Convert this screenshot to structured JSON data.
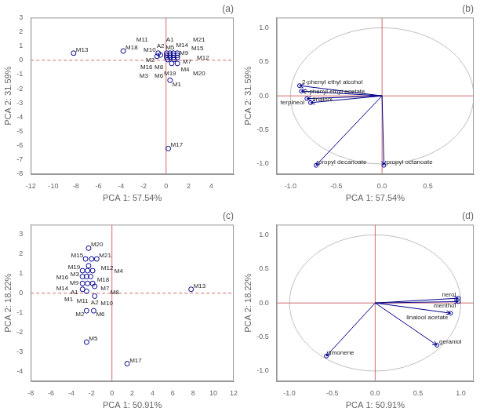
{
  "chart_data": [
    {
      "type": "scatter",
      "title": "(a)",
      "xlabel": "PCA 1: 57.54%",
      "ylabel": "PCA 2: 31.59%",
      "xlim": [
        -12,
        6
      ],
      "ylim": [
        -8,
        3
      ],
      "xticks": [
        -12,
        -10,
        -8,
        -6,
        -4,
        -2,
        0,
        2,
        4
      ],
      "yticks": [
        -8,
        -7,
        -6,
        -5,
        -4,
        -3,
        -2,
        -1,
        0,
        1,
        2,
        3
      ],
      "x": [
        -8.2,
        -3.8,
        -0.7,
        -0.5,
        -0.8,
        0.05,
        0.35,
        0.65,
        1.0,
        0.05,
        0.35,
        0.65,
        1.0,
        0.05,
        0.35,
        0.65,
        1.0,
        0.15,
        0.7,
        0.5,
        1.0,
        0.35,
        0.2
      ],
      "values": [
        0.5,
        0.65,
        0.5,
        0.37,
        0.28,
        0.5,
        0.5,
        0.5,
        0.5,
        0.35,
        0.35,
        0.35,
        0.35,
        0.2,
        0.2,
        0.2,
        0.2,
        0.05,
        0.05,
        -0.22,
        -0.22,
        -1.4,
        -6.2
      ],
      "labels": [
        "M13",
        "M18",
        "M10",
        "A2",
        "M2",
        "M14",
        "M5",
        "M7",
        "M9",
        "M16",
        "M19",
        "M21",
        "M8",
        "M4",
        "A1",
        "M20",
        "M12",
        "M3",
        "M11",
        "M15",
        "M6",
        "M1",
        "M17"
      ],
      "color": "#00008B",
      "marker": "circle",
      "grid": false,
      "reference_lines": [
        {
          "axis": "y",
          "value": 0,
          "color": "#CD5C5C",
          "line_style": "dashed"
        },
        {
          "axis": "x",
          "value": 0,
          "color": "#CD5C5C",
          "line_style": "solid"
        }
      ]
    },
    {
      "type": "biplot",
      "title": "(b)",
      "xlabel": "PCA 1: 57.54%",
      "ylabel": "PCA 2: 31.59%",
      "xlim": [
        -1.15,
        1.0
      ],
      "ylim": [
        -1.15,
        1.15
      ],
      "xticks": [
        {
          "value": -1.0,
          "label": "-1.0"
        },
        -0.5,
        {
          "value": 0.0,
          "label": "0.0"
        },
        0.5
      ],
      "yticks": [
        {
          "value": -1.0,
          "label": "-1.0"
        },
        -0.5,
        {
          "value": 0.0,
          "label": "0.0"
        },
        0.5,
        {
          "value": 1.0,
          "label": "1.0"
        }
      ],
      "x": [
        -0.9,
        -0.88,
        -0.82,
        -0.78,
        -0.72,
        0.02
      ],
      "values": [
        0.15,
        0.07,
        -0.04,
        -0.1,
        -1.02,
        -1.02
      ],
      "labels": [
        "2-phenyl ethyl alcohol",
        "2-phenyl ethyl acetate",
        "terpineol",
        "linalool",
        "propyl decanoate",
        "propyl octanoate"
      ],
      "origin": [
        0,
        0
      ],
      "color": "#00008B",
      "marker": "circle",
      "grid": false,
      "circle": {
        "radius": 1,
        "color": "#BEBEBE"
      },
      "reference_lines": [
        {
          "axis": "y",
          "value": 0,
          "color": "#CD5C5C",
          "line_style": "solid"
        },
        {
          "axis": "x",
          "value": 0,
          "color": "#CD5C5C",
          "line_style": "solid"
        }
      ]
    },
    {
      "type": "scatter",
      "title": "(c)",
      "xlabel": "PCA 1: 50.91%",
      "ylabel": "PCA 2: 18.22%",
      "xlim": [
        -8,
        12
      ],
      "ylim": [
        -4.5,
        3.5
      ],
      "xticks": [
        -8,
        -6,
        -4,
        -2,
        0,
        2,
        4,
        6,
        8,
        10,
        12
      ],
      "yticks": [
        -4,
        -3,
        -2,
        -1,
        0,
        1,
        2,
        3
      ],
      "x": [
        -2.3,
        -2.6,
        -2.0,
        -1.5,
        -2.3,
        -2.9,
        -2.4,
        -1.9,
        -2.9,
        -2.5,
        -2.1,
        -2.9,
        -2.4,
        -1.9,
        -2.9,
        -2.5,
        -1.7,
        -2.5,
        -1.8,
        -2.5,
        1.5,
        7.8,
        -1.7
      ],
      "values": [
        2.3,
        1.75,
        1.75,
        1.75,
        1.4,
        1.15,
        1.15,
        1.15,
        0.85,
        0.85,
        0.85,
        0.5,
        0.5,
        0.5,
        0.2,
        0.1,
        -0.15,
        -0.9,
        -0.9,
        -2.5,
        -3.6,
        0.2,
        0.35
      ],
      "labels": [
        "M20",
        "M15",
        "M12",
        "M21",
        "M3",
        "M19",
        "M18",
        "M9",
        "M14",
        "M7",
        "M8",
        "M11",
        "A1",
        "M1",
        "M16",
        "M10",
        "A2",
        "M2",
        "M6",
        "M5",
        "M17",
        "M13",
        "M4"
      ],
      "color": "#00008B",
      "marker": "circle",
      "grid": false,
      "reference_lines": [
        {
          "axis": "y",
          "value": 0,
          "color": "#CD5C5C",
          "line_style": "dashed"
        },
        {
          "axis": "x",
          "value": 0,
          "color": "#CD5C5C",
          "line_style": "solid"
        }
      ]
    },
    {
      "type": "biplot",
      "title": "(d)",
      "xlabel": "PCA 1: 50.91%",
      "ylabel": "PCA 2: 18.22%",
      "xlim": [
        -1.15,
        1.15
      ],
      "ylim": [
        -1.15,
        1.15
      ],
      "xticks": [
        {
          "value": -1.0,
          "label": "-1.0"
        },
        -0.5,
        {
          "value": 0.0,
          "label": "0.0"
        },
        0.5,
        {
          "value": 1.0,
          "label": "1.0"
        }
      ],
      "yticks": [
        {
          "value": -1.0,
          "label": "-1.0"
        },
        -0.5,
        {
          "value": 0.0,
          "label": "0.0"
        },
        0.5,
        {
          "value": 1.0,
          "label": "1.0"
        }
      ],
      "x": [
        0.97,
        0.97,
        0.88,
        0.72,
        -0.57
      ],
      "values": [
        0.07,
        0.02,
        -0.15,
        -0.62,
        -0.78
      ],
      "labels": [
        "nerol",
        "menthol",
        "linalool acetate",
        "geraniol",
        "limonene"
      ],
      "origin": [
        0,
        0
      ],
      "color": "#00008B",
      "marker": "circle",
      "grid": false,
      "circle": {
        "radius": 1,
        "color": "#BEBEBE"
      },
      "reference_lines": [
        {
          "axis": "y",
          "value": 0,
          "color": "#CD5C5C",
          "line_style": "solid"
        },
        {
          "axis": "x",
          "value": 0,
          "color": "#CD5C5C",
          "line_style": "solid"
        }
      ]
    }
  ]
}
